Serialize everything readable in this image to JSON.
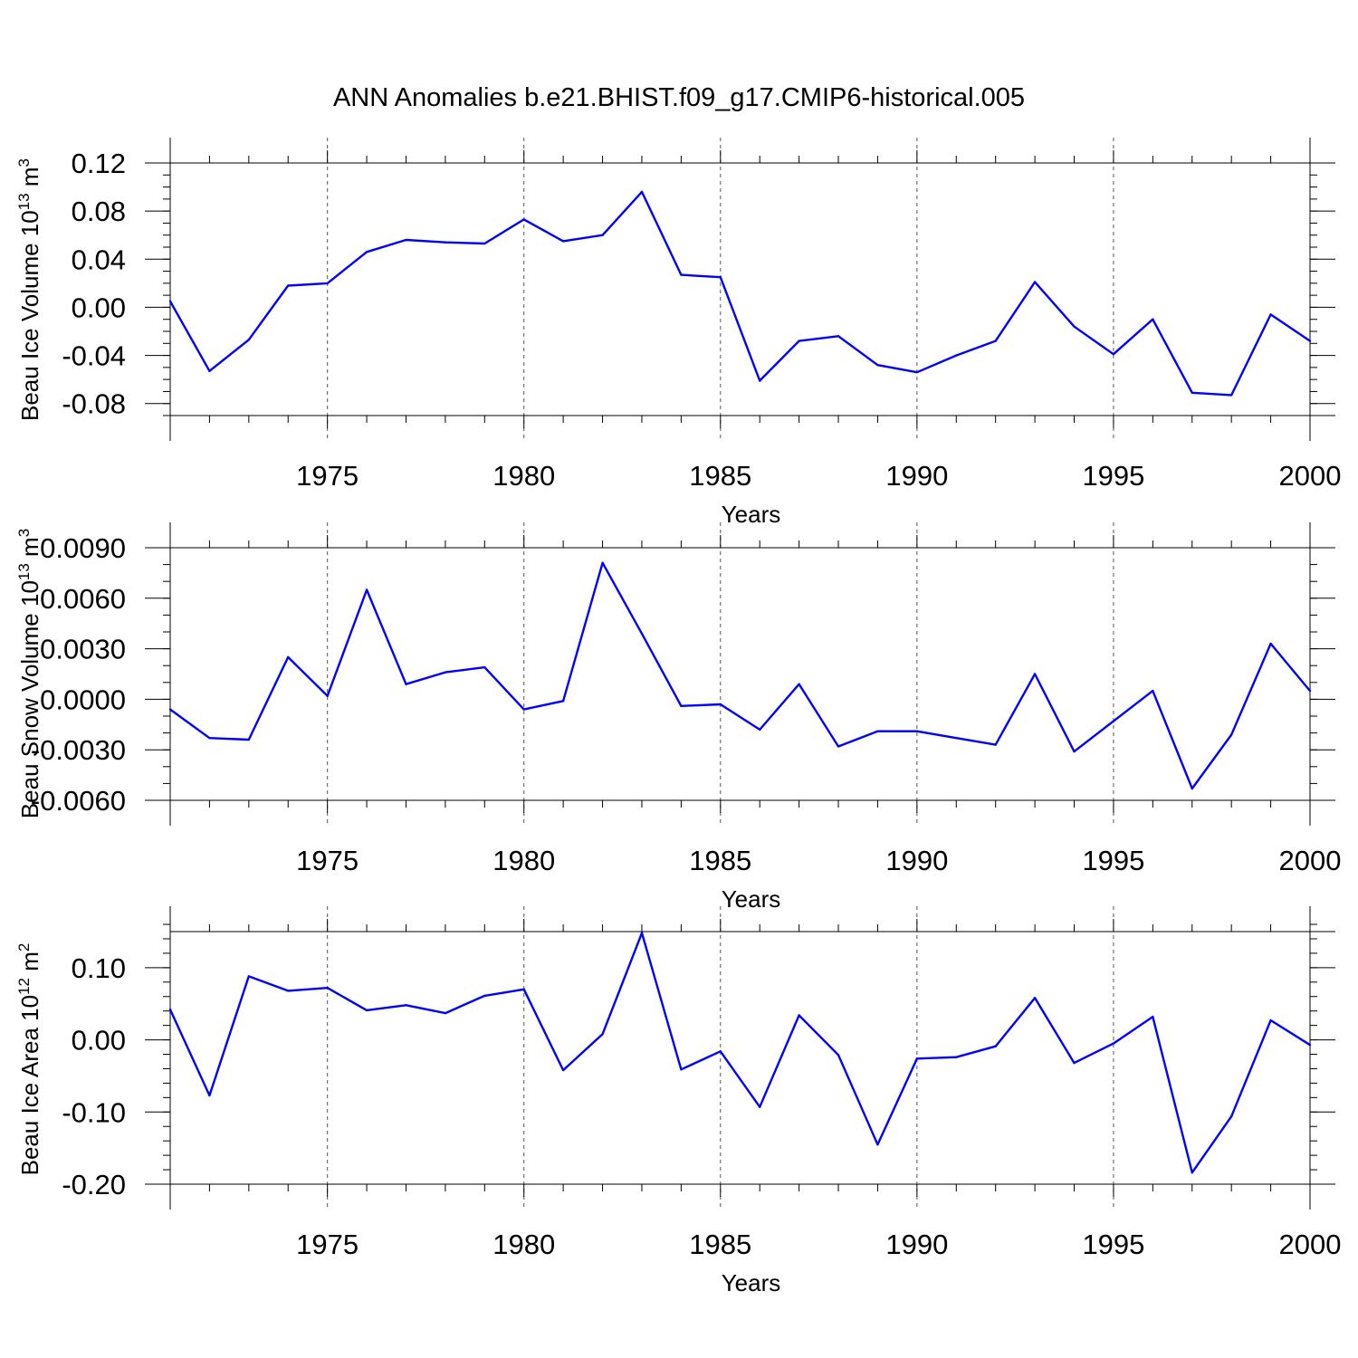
{
  "title": "ANN Anomalies b.e21.BHIST.f09_g17.CMIP6-historical.005",
  "colors": {
    "line": "#0000ff",
    "axis": "#000000",
    "grid": "#555555"
  },
  "chart_data": [
    {
      "type": "line",
      "name": "ice-volume",
      "xlabel": "Years",
      "ylabel": {
        "main": "Beau Ice Volume 10",
        "sup": "13",
        "unit": " m",
        "unit_sup": "3"
      },
      "xlim": [
        1971,
        2000
      ],
      "ylim": [
        -0.09,
        0.12
      ],
      "xticks": [
        1975,
        1980,
        1985,
        1990,
        1995,
        2000
      ],
      "xtick_labels": [
        "1975",
        "1980",
        "1985",
        "1990",
        "1995",
        "2000"
      ],
      "yticks": [
        0.12,
        0.08,
        0.04,
        0.0,
        -0.04,
        -0.08
      ],
      "ytick_labels": [
        "0.12",
        "0.08",
        "0.04",
        "0.00",
        "-0.04",
        "-0.08"
      ],
      "yminor_step": 0.01,
      "grid": "dashed vertical at major x ticks",
      "x": [
        1971,
        1972,
        1973,
        1974,
        1975,
        1976,
        1977,
        1978,
        1979,
        1980,
        1981,
        1982,
        1983,
        1984,
        1985,
        1986,
        1987,
        1988,
        1989,
        1990,
        1991,
        1992,
        1993,
        1994,
        1995,
        1996,
        1997,
        1998,
        1999,
        2000
      ],
      "values": [
        0.005,
        -0.053,
        -0.027,
        0.018,
        0.02,
        0.046,
        0.056,
        0.054,
        0.053,
        0.073,
        0.055,
        0.06,
        0.096,
        0.027,
        0.025,
        -0.061,
        -0.028,
        -0.024,
        -0.048,
        -0.054,
        -0.04,
        -0.028,
        0.021,
        -0.016,
        -0.039,
        -0.01,
        -0.071,
        -0.073,
        -0.006,
        -0.028
      ]
    },
    {
      "type": "line",
      "name": "snow-volume",
      "xlabel": "Years",
      "ylabel": {
        "main": "Beau Snow Volume 10",
        "sup": "13",
        "unit": " m",
        "unit_sup": "3"
      },
      "xlim": [
        1971,
        2000
      ],
      "ylim": [
        -0.006,
        0.009
      ],
      "xticks": [
        1975,
        1980,
        1985,
        1990,
        1995,
        2000
      ],
      "xtick_labels": [
        "1975",
        "1980",
        "1985",
        "1990",
        "1995",
        "2000"
      ],
      "yticks": [
        0.009,
        0.006,
        0.003,
        0.0,
        -0.003,
        -0.006
      ],
      "ytick_labels": [
        "0.0090",
        "0.0060",
        "0.0030",
        "0.0000",
        "-0.0030",
        "-0.0060"
      ],
      "yminor_step": 0.001,
      "grid": "dashed vertical at major x ticks",
      "x": [
        1971,
        1972,
        1973,
        1974,
        1975,
        1976,
        1977,
        1978,
        1979,
        1980,
        1981,
        1982,
        1983,
        1984,
        1985,
        1986,
        1987,
        1988,
        1989,
        1990,
        1991,
        1992,
        1993,
        1994,
        1995,
        1996,
        1997,
        1998,
        1999,
        2000
      ],
      "values": [
        -0.0006,
        -0.0023,
        -0.0024,
        0.0025,
        0.0002,
        0.0065,
        0.0009,
        0.0016,
        0.0019,
        -0.0006,
        -0.0001,
        0.0081,
        0.0039,
        -0.0004,
        -0.0003,
        -0.0018,
        0.0009,
        -0.0028,
        -0.0019,
        -0.0019,
        -0.0023,
        -0.0027,
        0.0015,
        -0.0031,
        -0.0013,
        0.0005,
        -0.0053,
        -0.0021,
        0.0033,
        0.0005
      ]
    },
    {
      "type": "line",
      "name": "ice-area",
      "xlabel": "Years",
      "ylabel": {
        "main": "Beau Ice Area 10",
        "sup": "12",
        "unit": " m",
        "unit_sup": "2"
      },
      "xlim": [
        1971,
        2000
      ],
      "ylim": [
        -0.2,
        0.15
      ],
      "xticks": [
        1975,
        1980,
        1985,
        1990,
        1995,
        2000
      ],
      "xtick_labels": [
        "1975",
        "1980",
        "1985",
        "1990",
        "1995",
        "2000"
      ],
      "yticks": [
        0.1,
        0.0,
        -0.1,
        -0.2
      ],
      "ytick_labels": [
        "0.10",
        "0.00",
        "-0.10",
        "-0.20"
      ],
      "yminor_step": 0.02,
      "grid": "dashed vertical at major x ticks",
      "x": [
        1971,
        1972,
        1973,
        1974,
        1975,
        1976,
        1977,
        1978,
        1979,
        1980,
        1981,
        1982,
        1983,
        1984,
        1985,
        1986,
        1987,
        1988,
        1989,
        1990,
        1991,
        1992,
        1993,
        1994,
        1995,
        1996,
        1997,
        1998,
        1999,
        2000
      ],
      "values": [
        0.042,
        -0.077,
        0.088,
        0.068,
        0.072,
        0.041,
        0.048,
        0.037,
        0.061,
        0.07,
        -0.042,
        0.008,
        0.148,
        -0.041,
        -0.016,
        -0.093,
        0.034,
        -0.021,
        -0.145,
        -0.026,
        -0.024,
        -0.009,
        0.058,
        -0.032,
        -0.005,
        0.032,
        -0.184,
        -0.106,
        0.027,
        -0.007
      ]
    }
  ]
}
